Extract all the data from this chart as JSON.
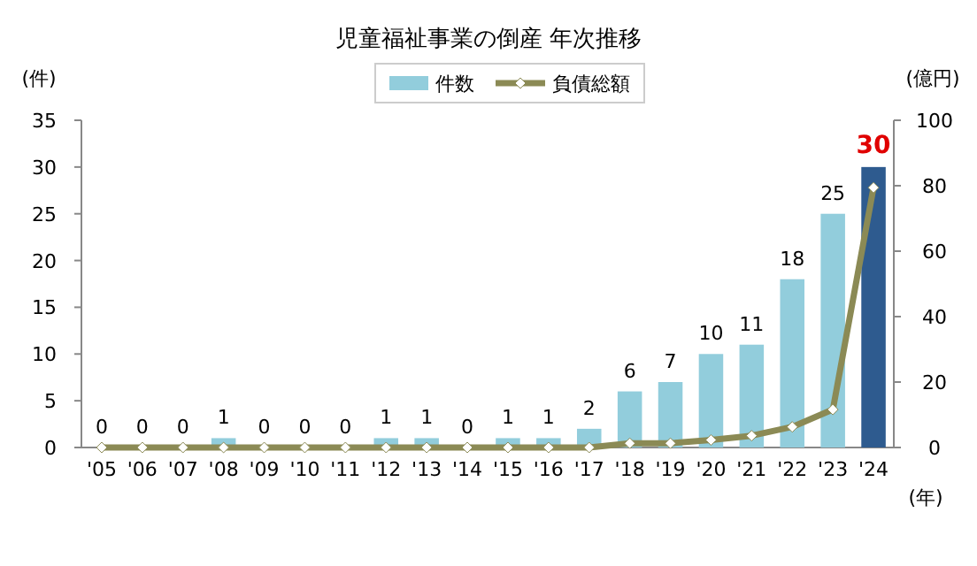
{
  "chart_data": {
    "type": "bar",
    "title": "児童福祉事業の倒産 年次推移",
    "xlabel": "(年)",
    "ylabel": "(件)",
    "y2label": "(億円)",
    "categories": [
      "'05",
      "'06",
      "'07",
      "'08",
      "'09",
      "'10",
      "'11",
      "'12",
      "'13",
      "'14",
      "'15",
      "'16",
      "'17",
      "'18",
      "'19",
      "'20",
      "'21",
      "'22",
      "'23",
      "'24"
    ],
    "series": [
      {
        "name": "件数",
        "value_labels": [
          "0",
          "0",
          "0",
          "1",
          "0",
          "0",
          "0",
          "1",
          "1",
          "0",
          "1",
          "1",
          "2",
          "6",
          "7",
          "10",
          "11",
          "18",
          "25",
          "30"
        ],
        "colors": [
          "#92cddc",
          "#92cddc",
          "#92cddc",
          "#92cddc",
          "#92cddc",
          "#92cddc",
          "#92cddc",
          "#92cddc",
          "#92cddc",
          "#92cddc",
          "#92cddc",
          "#92cddc",
          "#92cddc",
          "#92cddc",
          "#92cddc",
          "#92cddc",
          "#92cddc",
          "#92cddc",
          "#92cddc",
          "#2e5b8f"
        ],
        "values": [
          0,
          0,
          0,
          1,
          0,
          0,
          0,
          1,
          1,
          0,
          1,
          1,
          2,
          6,
          7,
          10,
          11,
          18,
          25,
          30
        ]
      },
      {
        "name": "負債総額",
        "type": "line",
        "axis": "y2",
        "color": "#8b8a55",
        "marker": "diamond",
        "values": [
          0,
          0,
          0,
          0,
          0,
          0,
          0,
          0,
          0,
          0,
          0,
          0,
          0,
          1.3,
          1.3,
          2.3,
          3.6,
          6.3,
          11.6,
          79.4
        ]
      }
    ],
    "ylim": [
      0,
      35
    ],
    "yticks": [
      0,
      5,
      10,
      15,
      20,
      25,
      30,
      35
    ],
    "y2lim": [
      0,
      100
    ],
    "y2ticks": [
      0,
      20,
      40,
      60,
      80,
      100
    ],
    "legend": "top",
    "grid": false
  }
}
